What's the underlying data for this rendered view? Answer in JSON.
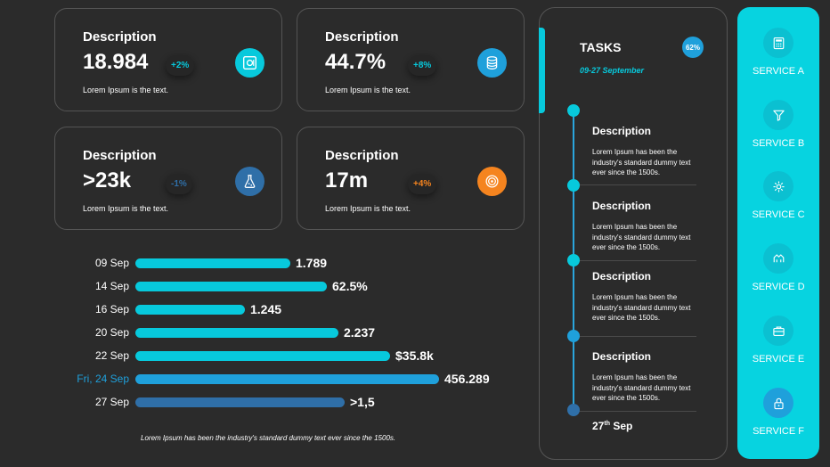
{
  "cards": [
    {
      "title": "Description",
      "value": "18.984",
      "badge": "+2%",
      "badge_color": "#07c9dc",
      "sub": "Lorem Ipsum is the text.",
      "icon": "safe-icon",
      "icon_color": "#07c9dc"
    },
    {
      "title": "Description",
      "value": "44.7%",
      "badge": "+8%",
      "badge_color": "#07c9dc",
      "sub": "Lorem Ipsum is the text.",
      "icon": "database-icon",
      "icon_color": "#1fa0db"
    },
    {
      "title": "Description",
      "value": ">23k",
      "badge": "-1%",
      "badge_color": "#2f6fa8",
      "sub": "Lorem Ipsum is the text.",
      "icon": "flask-icon",
      "icon_color": "#2f6fa8"
    },
    {
      "title": "Description",
      "value": "17m",
      "badge": "+4%",
      "badge_color": "#f5841f",
      "sub": "Lorem Ipsum is the text.",
      "icon": "target-icon",
      "icon_color": "#f5841f"
    }
  ],
  "chart_data": {
    "type": "bar",
    "orientation": "horizontal",
    "categories": [
      "09 Sep",
      "14 Sep",
      "16 Sep",
      "20 Sep",
      "22 Sep",
      "Fri, 24 Sep",
      "27 Sep"
    ],
    "values": [
      0.51,
      0.63,
      0.36,
      0.67,
      0.84,
      1.0,
      0.69
    ],
    "value_labels": [
      "1.789",
      "62.5%",
      "1.245",
      "2.237",
      "$35.8k",
      "456.289",
      ">1,5"
    ],
    "colors": [
      "#07c9dc",
      "#07c9dc",
      "#07c9dc",
      "#07c9dc",
      "#07c9dc",
      "#1fa0db",
      "#2f6fa8"
    ],
    "highlight_index": 5,
    "highlight_label_color": "#1fa0db"
  },
  "footnote": "Lorem Ipsum has been the industry's standard dummy text ever since the 1500s.",
  "tasks": {
    "title": "TASKS",
    "date_range": "09-27 September",
    "percent": "62%",
    "items": [
      {
        "title": "Description",
        "text": "Lorem Ipsum has been the industry's standard dummy text ever since the 1500s."
      },
      {
        "title": "Description",
        "text": "Lorem Ipsum has been the industry's standard dummy text ever since the 1500s."
      },
      {
        "title": "Description",
        "text": "Lorem Ipsum has been the industry's standard dummy text ever since the 1500s."
      },
      {
        "title": "Description",
        "text": "Lorem Ipsum has been the industry's standard dummy text ever since the 1500s."
      }
    ],
    "end_day": "27",
    "end_suffix": "th",
    "end_month": "Sep",
    "dot_colors": [
      "#07c9dc",
      "#07c9dc",
      "#07c9dc",
      "#1fa0db",
      "#2f6fa8"
    ]
  },
  "services": [
    {
      "label": "SERVICE A",
      "icon": "calculator-icon"
    },
    {
      "label": "SERVICE B",
      "icon": "funnel-icon"
    },
    {
      "label": "SERVICE C",
      "icon": "gear-icon"
    },
    {
      "label": "SERVICE D",
      "icon": "hands-icon"
    },
    {
      "label": "SERVICE E",
      "icon": "briefcase-icon"
    },
    {
      "label": "SERVICE F",
      "icon": "lock-icon"
    }
  ],
  "service_active_color": "#1fa0db"
}
